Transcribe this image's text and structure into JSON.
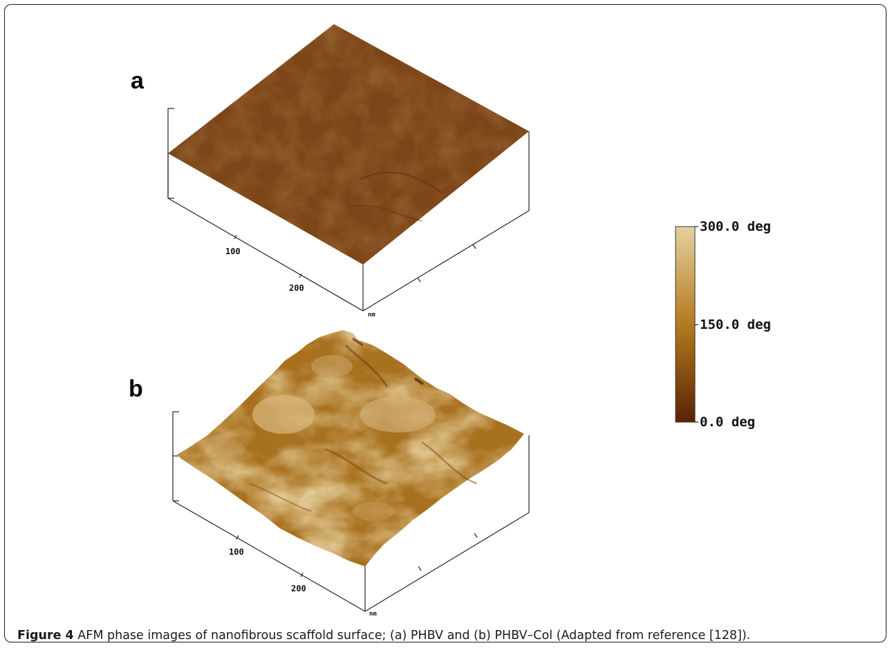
{
  "panels": [
    {
      "letter": "a",
      "x_ticks": [
        "100",
        "200"
      ],
      "unit": "nm"
    },
    {
      "letter": "b",
      "x_ticks": [
        "100",
        "200"
      ],
      "unit": "nm"
    }
  ],
  "colorbar": {
    "max_label": "300.0 deg",
    "mid_label": "150.0 deg",
    "min_label": "0.0 deg",
    "colors": {
      "top": "#e6d0a0",
      "mid": "#b47a1e",
      "bottom": "#5a2206"
    }
  },
  "caption": {
    "label": "Figure 4",
    "text": "AFM phase images of nanofibrous scaffold surface; (a) PHBV and (b) PHBV–Col (Adapted from reference [128])."
  },
  "surface_colors": {
    "a": "#7d4619",
    "b": "#a8711f"
  }
}
